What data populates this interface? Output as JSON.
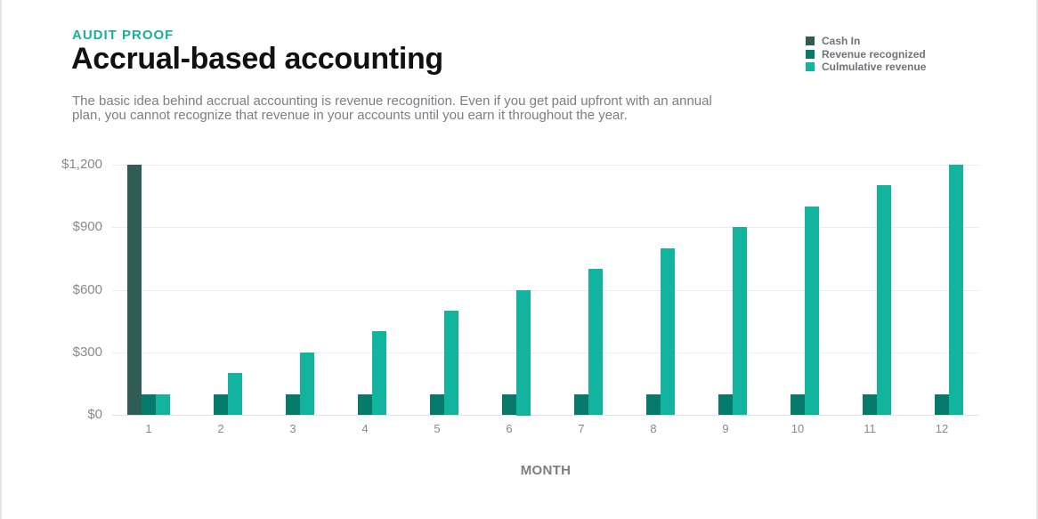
{
  "header": {
    "eyebrow": "AUDIT PROOF",
    "title": "Accrual-based accounting",
    "description": "The basic idea behind accrual accounting is revenue recognition. Even if you get paid upfront with an annual plan, you cannot recognize that revenue in your accounts until you earn it throughout the year."
  },
  "legend": [
    {
      "label": "Cash In",
      "color": "#2f5d55"
    },
    {
      "label": "Revenue recognized",
      "color": "#067a6a"
    },
    {
      "label": "Culmulative revenue",
      "color": "#13b49f"
    }
  ],
  "chart_data": {
    "type": "bar",
    "title": "Accrual-based accounting",
    "subtitle": "AUDIT PROOF",
    "xlabel": "MONTH",
    "ylabel": "",
    "categories": [
      "1",
      "2",
      "3",
      "4",
      "5",
      "6",
      "7",
      "8",
      "9",
      "10",
      "11",
      "12"
    ],
    "series": [
      {
        "name": "Cash In",
        "color": "#2f5d55",
        "values": [
          1200,
          0,
          0,
          0,
          0,
          0,
          0,
          0,
          0,
          0,
          0,
          0
        ]
      },
      {
        "name": "Revenue recognized",
        "color": "#067a6a",
        "values": [
          100,
          100,
          100,
          100,
          100,
          100,
          100,
          100,
          100,
          100,
          100,
          100
        ]
      },
      {
        "name": "Culmulative revenue",
        "color": "#13b49f",
        "values": [
          100,
          200,
          300,
          400,
          500,
          600,
          700,
          800,
          900,
          1000,
          1100,
          1200
        ]
      }
    ],
    "ylim": [
      0,
      1200
    ],
    "yticks": [
      0,
      300,
      600,
      900,
      1200
    ],
    "ytick_labels": [
      "$0",
      "$300",
      "$600",
      "$900",
      "$1,200"
    ],
    "grid": true,
    "legend_position": "top-right"
  }
}
